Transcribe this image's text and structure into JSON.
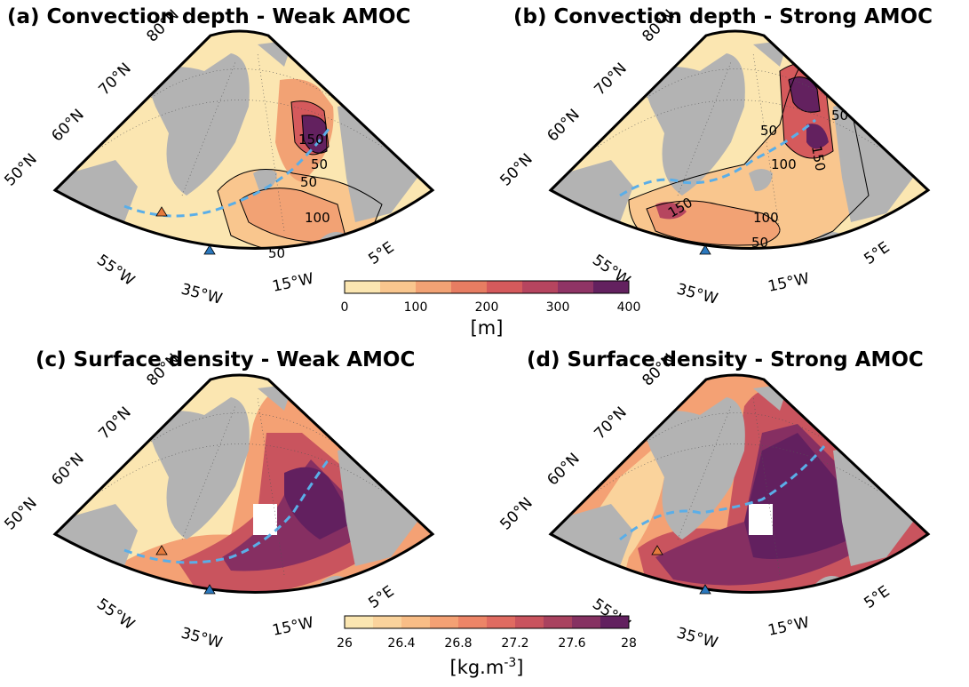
{
  "figure": {
    "panels": [
      {
        "id": "a",
        "title": "(a) Convection depth - Weak AMOC",
        "field": "convection",
        "lat_labels": [
          "80°N",
          "70°N",
          "60°N",
          "50°N"
        ],
        "lon_labels": [
          "55°W",
          "35°W",
          "15°W",
          "5°E"
        ],
        "contour_labels": [
          "150",
          "50",
          "50",
          "100",
          "50"
        ]
      },
      {
        "id": "b",
        "title": "(b) Convection depth - Strong AMOC",
        "field": "convection",
        "lat_labels": [
          "80°N",
          "70°N",
          "60°N",
          "50°N"
        ],
        "lon_labels": [
          "55°W",
          "35°W",
          "15°W",
          "5°E"
        ],
        "contour_labels": [
          "50",
          "150",
          "50",
          "100",
          "150",
          "100",
          "50"
        ]
      },
      {
        "id": "c",
        "title": "(c) Surface density - Weak AMOC",
        "field": "density",
        "lat_labels": [
          "80°N",
          "70°N",
          "60°N",
          "50°N"
        ],
        "lon_labels": [
          "55°W",
          "35°W",
          "15°W",
          "5°E"
        ],
        "contour_labels": []
      },
      {
        "id": "d",
        "title": "(d) Surface density - Strong AMOC",
        "field": "density",
        "lat_labels": [
          "80°N",
          "70°N",
          "60°N",
          "50°N"
        ],
        "lon_labels": [
          "55°W",
          "35°W",
          "15°W",
          "5°E"
        ],
        "contour_labels": []
      }
    ],
    "colorbars": [
      {
        "id": "convection",
        "label": "[m]",
        "ticks": [
          "0",
          "100",
          "200",
          "300",
          "400"
        ],
        "colors": [
          "#fbe6b1",
          "#f9c68e",
          "#f2a274",
          "#e77d62",
          "#d55a5c",
          "#b6455f",
          "#8f3465",
          "#63215f"
        ]
      },
      {
        "id": "density",
        "label": "[kg.m-3]",
        "ticks": [
          "26",
          "26.4",
          "26.8",
          "27.2",
          "27.6",
          "28"
        ],
        "colors": [
          "#fbe6b1",
          "#fad39c",
          "#f8bd86",
          "#f4a174",
          "#ed8567",
          "#e06b61",
          "#c9545e",
          "#a9425f",
          "#863262",
          "#62205f"
        ]
      }
    ],
    "colors": {
      "land": "#b3b3b3",
      "dashed_line": "#5aaee8",
      "triangle_orange": "#e57a3d",
      "triangle_blue": "#2b78bd"
    }
  }
}
